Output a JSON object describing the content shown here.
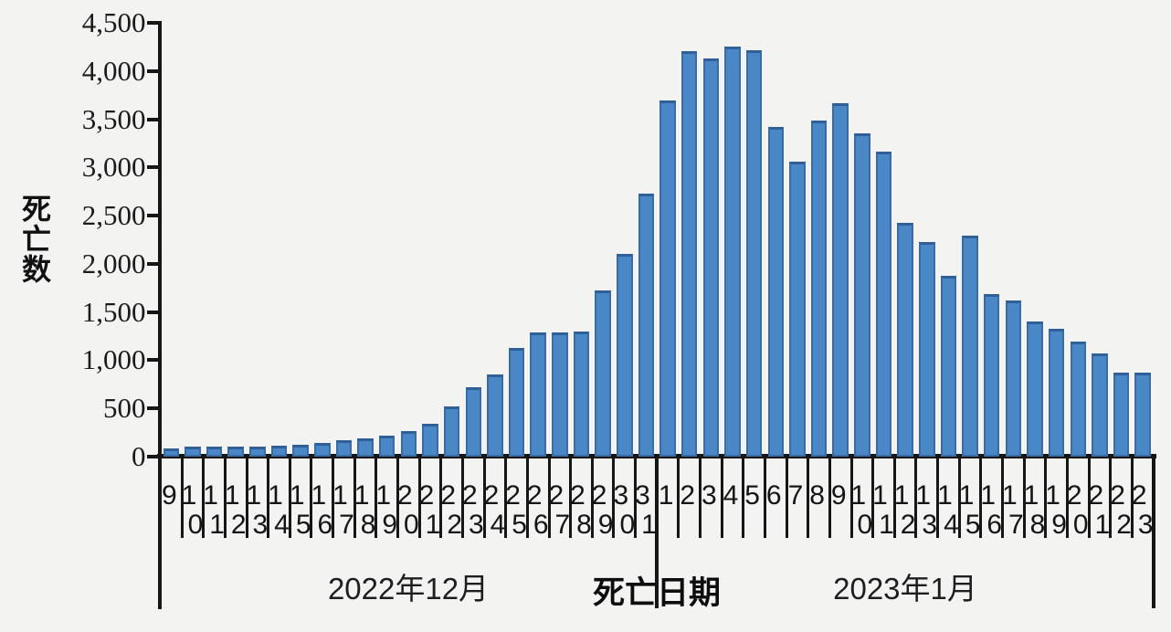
{
  "chart_data": {
    "type": "bar",
    "title": "",
    "ylabel": "死亡数",
    "xlabel": "死亡日期",
    "ylim": [
      0,
      4500
    ],
    "grid": false,
    "legend": "none",
    "ytick_labels_top_to_bottom": [
      "4,500",
      "4,000",
      "3,500",
      "3,000",
      "2,500",
      "2,000",
      "1,500",
      "1,000",
      "500",
      "0"
    ],
    "groups": [
      {
        "label": "2022年12月",
        "start_index": 0,
        "count": 23
      },
      {
        "label": "2023年1月",
        "start_index": 23,
        "count": 23
      }
    ],
    "categories": [
      "9",
      "10",
      "11",
      "12",
      "13",
      "14",
      "15",
      "16",
      "17",
      "18",
      "19",
      "20",
      "21",
      "22",
      "23",
      "24",
      "25",
      "26",
      "27",
      "28",
      "29",
      "30",
      "31",
      "1",
      "2",
      "3",
      "4",
      "5",
      "6",
      "7",
      "8",
      "9",
      "10",
      "11",
      "12",
      "13",
      "14",
      "15",
      "16",
      "17",
      "18",
      "19",
      "20",
      "21",
      "22",
      "23"
    ],
    "values": [
      90,
      105,
      108,
      100,
      108,
      112,
      125,
      140,
      175,
      190,
      220,
      265,
      345,
      520,
      720,
      855,
      1130,
      1285,
      1290,
      1295,
      1720,
      2100,
      2725,
      3695,
      4210,
      4130,
      4250,
      4220,
      3420,
      3060,
      3485,
      3670,
      3350,
      3160,
      2430,
      2230,
      1875,
      2295,
      1690,
      1620,
      1400,
      1325,
      1190,
      1070,
      870,
      870
    ],
    "colors": {
      "bar_fill": "#4a87c6",
      "bar_border": "#3a6ba3",
      "axis": "#161616",
      "background": "#f3f4f1",
      "text": "#1b1b1b"
    }
  }
}
